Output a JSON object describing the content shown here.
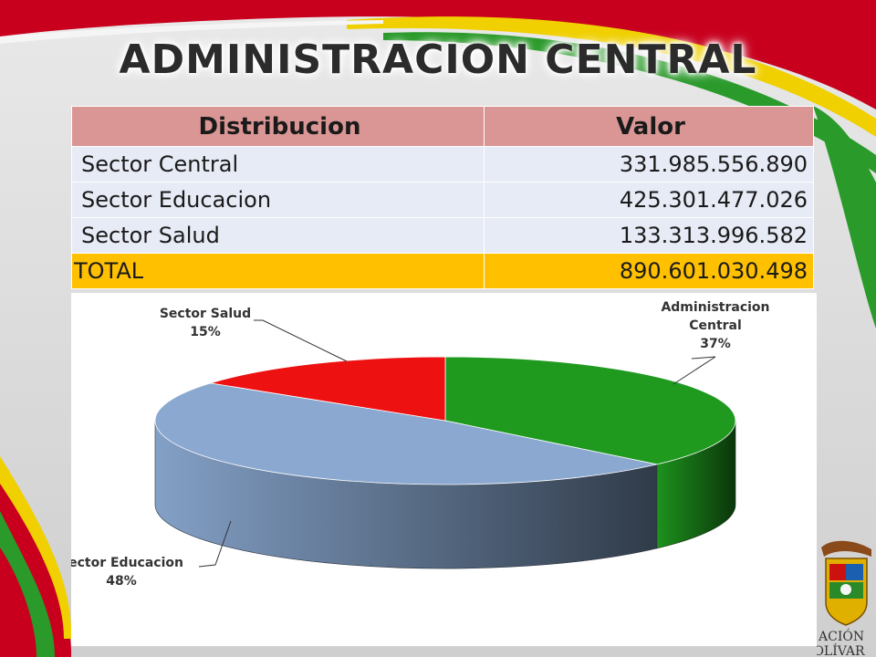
{
  "title": "ADMINISTRACION CENTRAL",
  "table": {
    "headers": [
      "Distribucion",
      "Valor"
    ],
    "rows": [
      {
        "label": "Sector Central",
        "value": "331.985.556.890"
      },
      {
        "label": "Sector Educacion",
        "value": "425.301.477.026"
      },
      {
        "label": "Sector Salud",
        "value": "133.313.996.582"
      }
    ],
    "total": {
      "label": "TOTAL",
      "value": "890.601.030.498"
    }
  },
  "chart_data": {
    "type": "pie",
    "style": "3d",
    "slices": [
      {
        "label": "Administracion Central",
        "percent_label": "37%",
        "value": 37,
        "color": "#1f9a1f"
      },
      {
        "label": "Sector Educacion",
        "percent_label": "48%",
        "value": 48,
        "color": "#8aa8d0"
      },
      {
        "label": "Sector Salud",
        "percent_label": "15%",
        "value": 15,
        "color": "#ee1111"
      }
    ]
  },
  "logo": {
    "line1": "ACIÓN",
    "line2": "DE BOLÍVAR"
  }
}
